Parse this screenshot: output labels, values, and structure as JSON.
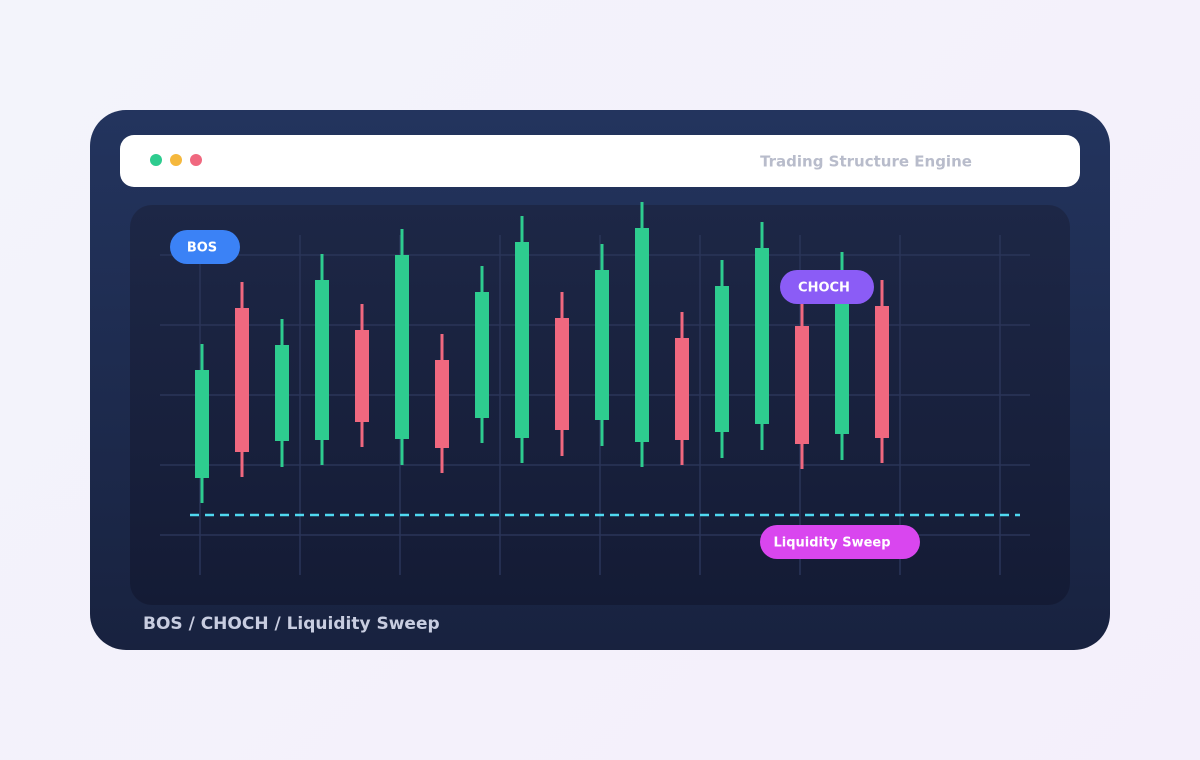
{
  "window": {
    "title": "Trading Structure Engine"
  },
  "labels": {
    "bos": "BOS",
    "choch": "CHOCH",
    "sweep": "Liquidity Sweep"
  },
  "footer": "BOS / CHOCH / Liquidity Sweep",
  "chart_data": {
    "type": "candlestick",
    "up_color": "#2ecc8f",
    "down_color": "#f0687f",
    "sweep_color": "#4fd8f0",
    "ylim": [
      0,
      405
    ],
    "sweep_level": 90,
    "open": [
      127,
      297,
      164,
      165,
      275,
      166,
      245,
      187,
      167,
      287,
      185,
      163,
      267,
      173,
      181,
      279,
      171,
      299
    ],
    "high": [
      261,
      323,
      286,
      351,
      301,
      376,
      271,
      339,
      389,
      313,
      361,
      403,
      293,
      345,
      383,
      305,
      353,
      325
    ],
    "low": [
      102,
      128,
      138,
      140,
      158,
      140,
      132,
      162,
      142,
      149,
      159,
      138,
      140,
      147,
      155,
      136,
      145,
      142
    ],
    "close": [
      235,
      153,
      260,
      325,
      183,
      350,
      157,
      313,
      363,
      175,
      335,
      377,
      165,
      319,
      357,
      161,
      327,
      167
    ]
  }
}
